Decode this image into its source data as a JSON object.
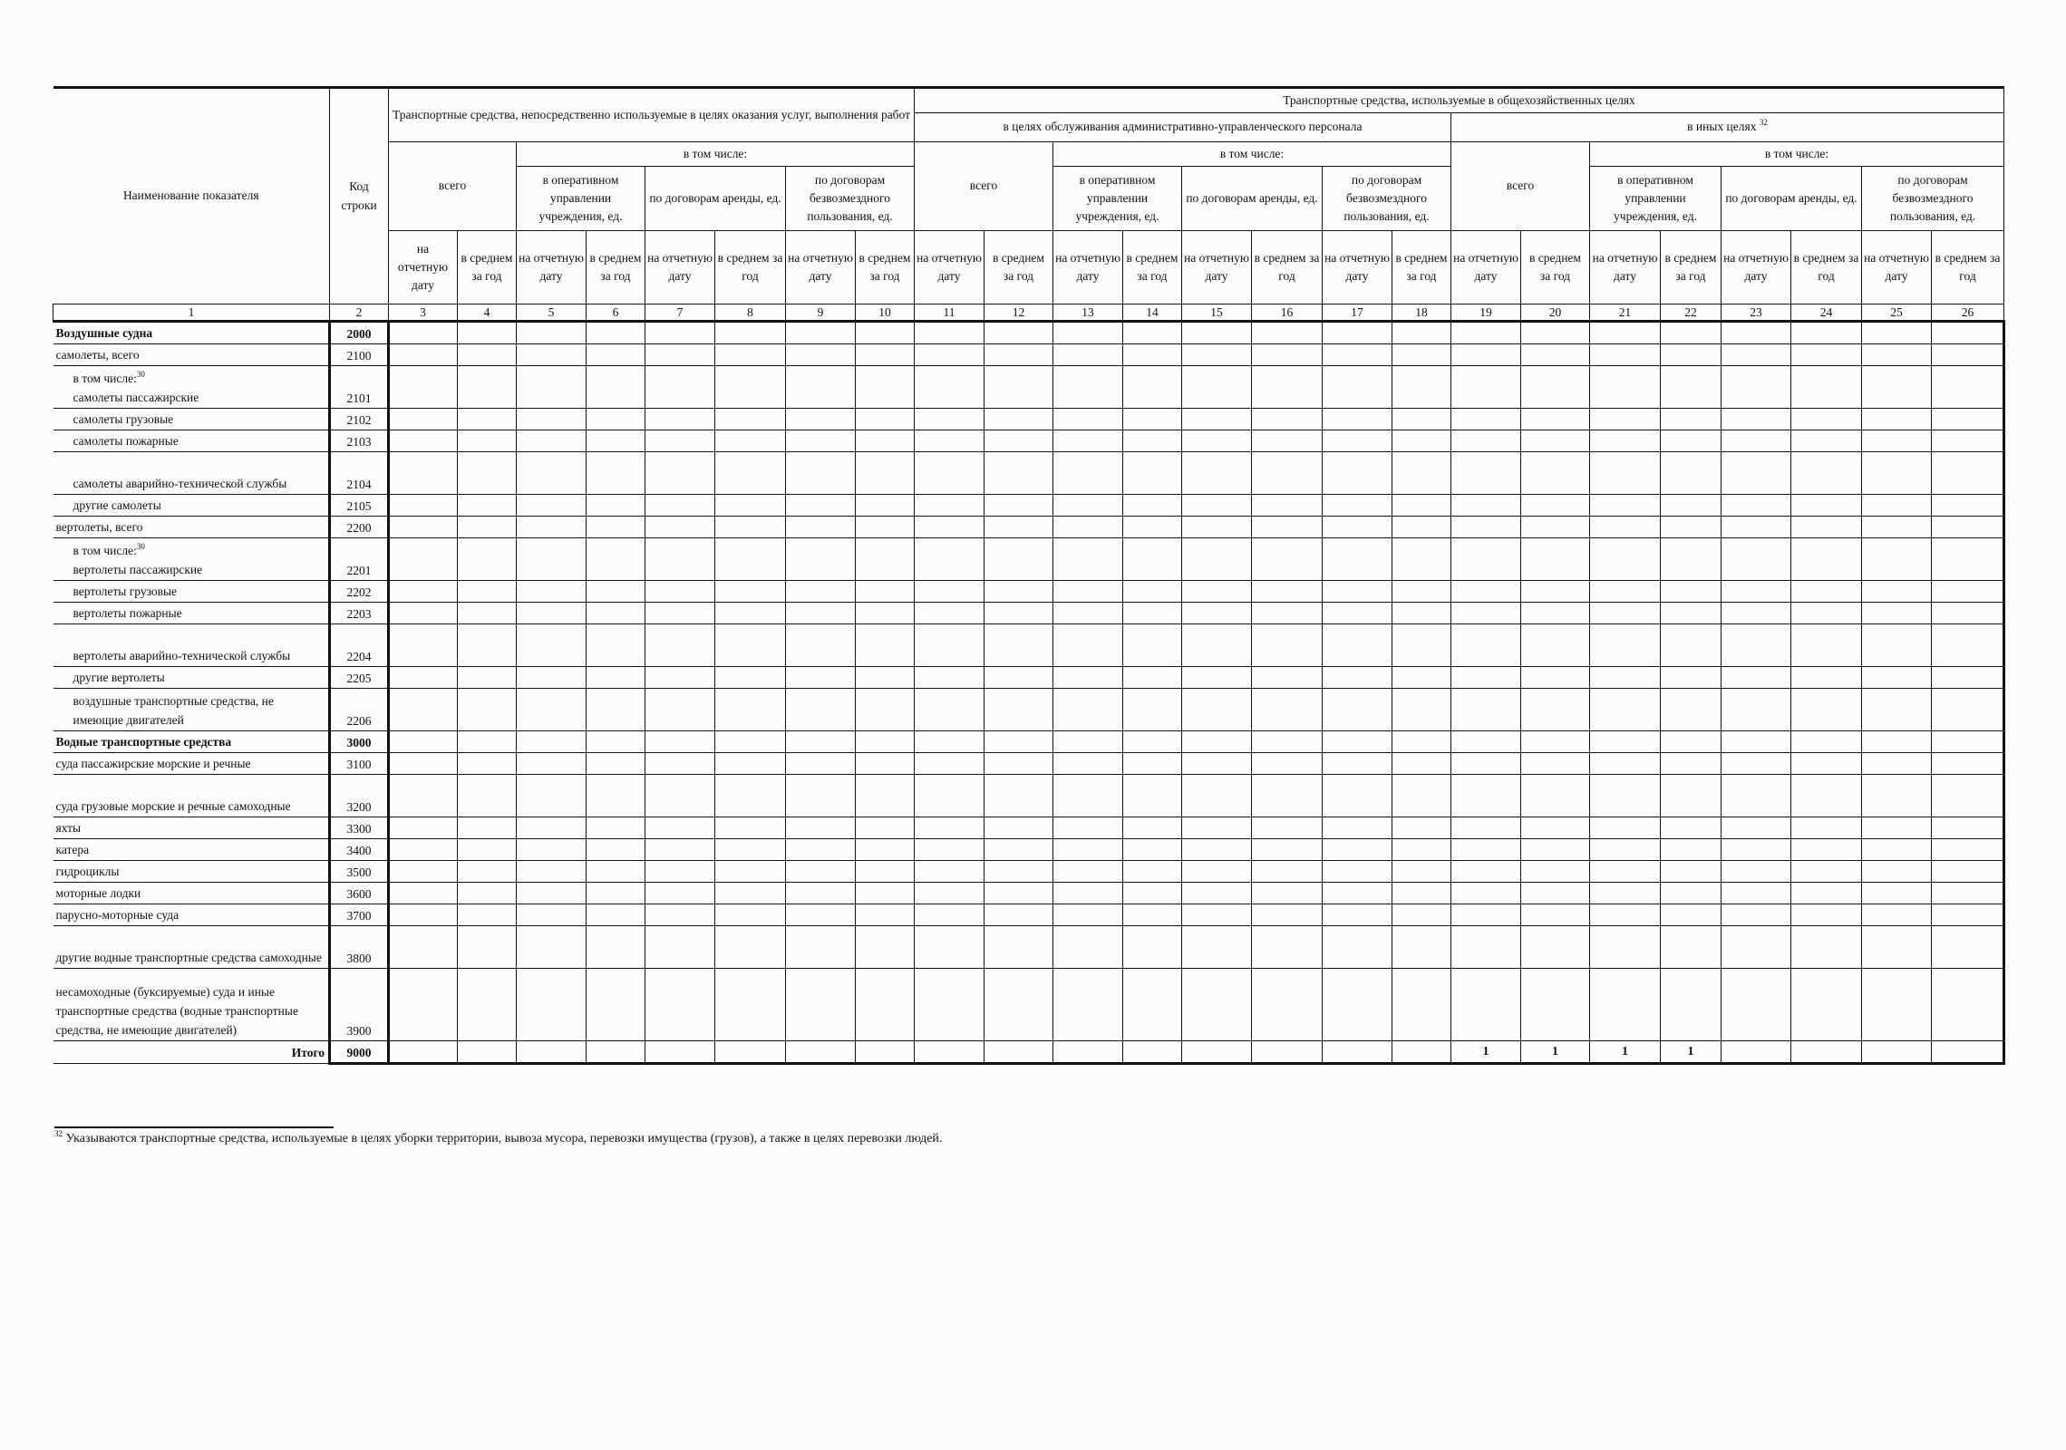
{
  "header": {
    "name_col": "Наименование показателя",
    "code_col": "Код строки",
    "group_services": "Транспортные средства, непосредственно используемые в целях оказания услуг, выполнения работ",
    "group_general": "Транспортные средства, используемые в общехозяйственных целях",
    "sub_admin": "в целях обслуживания административно-управленческого персонала",
    "sub_other": {
      "label": "в иных целях",
      "sup": "32"
    },
    "total": "всего",
    "including": "в том числе:",
    "categories": [
      "в оперативном управлении учреждения, ед.",
      "по договорам аренды, ед.",
      "по договорам безвозмездного пользования, ед."
    ],
    "on_date": "на отчетную дату",
    "avg_year": "в среднем за год",
    "column_numbers": [
      "1",
      "2",
      "3",
      "4",
      "5",
      "6",
      "7",
      "8",
      "9",
      "10",
      "11",
      "12",
      "13",
      "14",
      "15",
      "16",
      "17",
      "18",
      "19",
      "20",
      "21",
      "22",
      "23",
      "24",
      "25",
      "26"
    ]
  },
  "rows": [
    {
      "name": "Воздушные судна",
      "code": "2000",
      "bold": true,
      "indent": false,
      "lines": 1
    },
    {
      "name": "самолеты, всего",
      "code": "2100",
      "bold": false,
      "indent": false,
      "lines": 1
    },
    {
      "prefix": "в том числе:",
      "prefix_sup": "30",
      "name": "самолеты пассажирские",
      "code": "2101",
      "bold": false,
      "indent": true,
      "lines": 2
    },
    {
      "name": "самолеты грузовые",
      "code": "2102",
      "bold": false,
      "indent": true,
      "lines": 1
    },
    {
      "name": "самолеты пожарные",
      "code": "2103",
      "bold": false,
      "indent": true,
      "lines": 1
    },
    {
      "name": "самолеты аварийно-технической службы",
      "code": "2104",
      "bold": false,
      "indent": true,
      "lines": 2
    },
    {
      "name": "другие самолеты",
      "code": "2105",
      "bold": false,
      "indent": true,
      "lines": 1
    },
    {
      "name": "вертолеты, всего",
      "code": "2200",
      "bold": false,
      "indent": false,
      "lines": 1
    },
    {
      "prefix": "в том числе:",
      "prefix_sup": "30",
      "name": "вертолеты пассажирские",
      "code": "2201",
      "bold": false,
      "indent": true,
      "lines": 2
    },
    {
      "name": "вертолеты грузовые",
      "code": "2202",
      "bold": false,
      "indent": true,
      "lines": 1
    },
    {
      "name": "вертолеты пожарные",
      "code": "2203",
      "bold": false,
      "indent": true,
      "lines": 1
    },
    {
      "name": "вертолеты аварийно-технической службы",
      "code": "2204",
      "bold": false,
      "indent": true,
      "lines": 2
    },
    {
      "name": "другие вертолеты",
      "code": "2205",
      "bold": false,
      "indent": true,
      "lines": 1
    },
    {
      "name": "воздушные транспортные средства, не имеющие двигателей",
      "code": "2206",
      "bold": false,
      "indent": true,
      "lines": 2
    },
    {
      "name": "Водные транспортные средства",
      "code": "3000",
      "bold": true,
      "indent": false,
      "lines": 1
    },
    {
      "name": "суда пассажирские морские и речные",
      "code": "3100",
      "bold": false,
      "indent": false,
      "lines": 1
    },
    {
      "name": "суда грузовые морские и речные самоходные",
      "code": "3200",
      "bold": false,
      "indent": false,
      "lines": 2
    },
    {
      "name": "яхты",
      "code": "3300",
      "bold": false,
      "indent": false,
      "lines": 1
    },
    {
      "name": "катера",
      "code": "3400",
      "bold": false,
      "indent": false,
      "lines": 1
    },
    {
      "name": "гидроциклы",
      "code": "3500",
      "bold": false,
      "indent": false,
      "lines": 1
    },
    {
      "name": "моторные лодки",
      "code": "3600",
      "bold": false,
      "indent": false,
      "lines": 1
    },
    {
      "name": "парусно-моторные суда",
      "code": "3700",
      "bold": false,
      "indent": false,
      "lines": 1
    },
    {
      "name": "другие водные транспортные средства самоходные",
      "code": "3800",
      "bold": false,
      "indent": false,
      "lines": 2
    },
    {
      "name": "несамоходные (буксируемые) суда и иные транспортные средства (водные транспортные средства, не имеющие двигателей)",
      "code": "3900",
      "bold": false,
      "indent": false,
      "lines": 4
    },
    {
      "name": "Итого",
      "code": "9000",
      "bold": true,
      "indent": false,
      "lines": 1,
      "total": true,
      "values": [
        "",
        "",
        "",
        "",
        "",
        "",
        "",
        "",
        "",
        "",
        "",
        "",
        "",
        "",
        "",
        "",
        "1",
        "1",
        "1",
        "1",
        "",
        "",
        "",
        ""
      ]
    }
  ],
  "footnote": {
    "sup": "32",
    "text": "Указываются транспортные средства, используемые в целях уборки территории, вывоза мусора, перевозки имущества (грузов), а также в целях перевозки людей."
  }
}
